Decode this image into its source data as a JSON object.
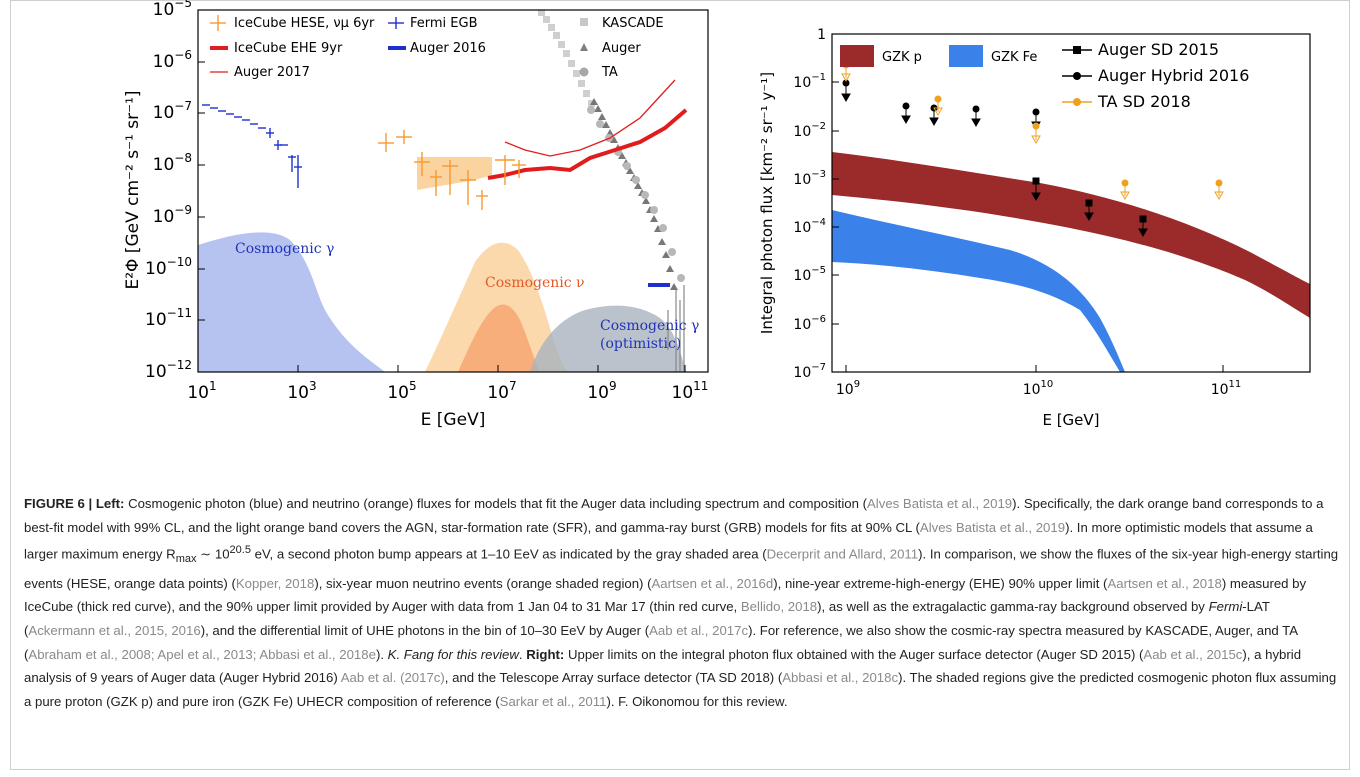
{
  "chart_data": [
    {
      "type": "scatter",
      "panel": "left",
      "xlabel": "E [GeV]",
      "ylabel": "E²Φ [GeV cm⁻² s⁻¹ sr⁻¹]",
      "xscale": "log",
      "yscale": "log",
      "xlim": [
        10,
        500000000000
      ],
      "ylim": [
        1e-12,
        1e-05
      ],
      "x_ticks": [
        "10^1",
        "10^3",
        "10^5",
        "10^7",
        "10^9",
        "10^11"
      ],
      "y_ticks": [
        "10^-12",
        "10^-11",
        "10^-10",
        "10^-9",
        "10^-8",
        "10^-7",
        "10^-6",
        "10^-5"
      ],
      "legend": [
        {
          "label": "IceCube HESE, νμ 6yr",
          "color": "#f59a32",
          "marker": "errorbar"
        },
        {
          "label": "IceCube EHE 9yr",
          "color": "#e01c1c",
          "marker": "thick-line"
        },
        {
          "label": "Auger 2017",
          "color": "#e01c1c",
          "marker": "thin-line"
        },
        {
          "label": "Fermi EGB",
          "color": "#1f2fcf",
          "marker": "errorbar"
        },
        {
          "label": "Auger 2016",
          "color": "#1f2fcf",
          "marker": "thick-line"
        },
        {
          "label": "KASCADE",
          "color": "#c8c8c8",
          "marker": "square"
        },
        {
          "label": "Auger",
          "color": "#808080",
          "marker": "triangle"
        },
        {
          "label": "TA",
          "color": "#a8a8a8",
          "marker": "circle"
        }
      ],
      "annotations": [
        "Cosmogenic γ",
        "Cosmogenic ν",
        "Cosmogenic γ",
        "(optimistic)"
      ],
      "series": [
        {
          "name": "Fermi EGB",
          "x": [
            12,
            17,
            24,
            34,
            48,
            68,
            95,
            135,
            190,
            270,
            380,
            540,
            760
          ],
          "y": [
            3.4e-07,
            3e-07,
            2.6e-07,
            2.3e-07,
            2e-07,
            1.8e-07,
            1.6e-07,
            1.3e-07,
            1e-07,
            6e-08,
            6e-08,
            2.8e-08,
            1.5e-08
          ]
        },
        {
          "name": "IceCube HESE, νμ 6yr",
          "x": [
            60000,
            150000,
            400000,
            1000000,
            2500000,
            6000000,
            15000000,
            35000000,
            80000000
          ],
          "y": [
            6.5e-08,
            8e-08,
            2.2e-08,
            1.5e-08,
            1.2e-08,
            5e-09,
            1.7e-08,
            2e-08,
            1.8e-08
          ]
        },
        {
          "name": "IceCube EHE 9yr",
          "x": [
            5000000,
            30000000,
            100000000,
            1000000000,
            10000000000,
            50000000000,
            200000000000
          ],
          "y": [
            1.2e-08,
            1.8e-08,
            2.1e-08,
            2e-08,
            3.6e-08,
            6.5e-08,
            2.6e-07
          ]
        },
        {
          "name": "Auger 2017",
          "x": [
            10000000,
            100000000,
            500000000,
            1000000000,
            5000000000,
            50000000000,
            300000000000
          ],
          "y": [
            1e-07,
            3.8e-08,
            3e-08,
            3.5e-08,
            4e-08,
            1.5e-07,
            8e-07
          ]
        },
        {
          "name": "Auger 2016",
          "x": [
            10000000000,
            30000000000
          ],
          "y": [
            7e-11,
            7e-11
          ]
        }
      ]
    },
    {
      "type": "scatter",
      "panel": "right",
      "xlabel": "E [GeV]",
      "ylabel": "Integral photon flux [km⁻² sr⁻¹ y⁻¹]",
      "xscale": "log",
      "yscale": "log",
      "xlim": [
        800000000,
        200000000000
      ],
      "ylim": [
        1e-07,
        1
      ],
      "x_ticks": [
        "10^9",
        "10^10",
        "10^11"
      ],
      "y_ticks": [
        "10^-7",
        "10^-6",
        "10^-5",
        "10^-4",
        "10^-3",
        "10^-2",
        "10^-1",
        "1"
      ],
      "legend": [
        {
          "label": "GZK p",
          "color": "#9b2a2a",
          "marker": "band"
        },
        {
          "label": "GZK Fe",
          "color": "#3a82ea",
          "marker": "band"
        },
        {
          "label": "Auger SD 2015",
          "color": "#000000",
          "marker": "square"
        },
        {
          "label": "Auger Hybrid 2016",
          "color": "#000000",
          "marker": "circle"
        },
        {
          "label": "TA SD 2018",
          "color": "#f0a020",
          "marker": "circle"
        }
      ],
      "series": [
        {
          "name": "Auger SD 2015",
          "x": [
            10000000000,
            20000000000,
            40000000000
          ],
          "y": [
            0.002,
            0.001,
            0.0005
          ]
        },
        {
          "name": "Auger Hybrid 2016",
          "x": [
            1000000000,
            2000000000,
            3000000000,
            5000000000,
            10000000000
          ],
          "y": [
            0.027,
            0.009,
            0.008,
            0.008,
            0.007
          ]
        },
        {
          "name": "TA SD 2018",
          "x": [
            1000000000,
            3200000000,
            10000000000,
            32000000000,
            100000000000
          ],
          "y": [
            0.07,
            0.012,
            0.004,
            0.001,
            0.001
          ]
        },
        {
          "name": "GZK p",
          "x": [
            800000000,
            1000000000,
            10000000000,
            50000000000,
            100000000000,
            200000000000
          ],
          "y_low": [
            0.0012,
            0.001,
            0.00028,
            5e-05,
            1e-05,
            7e-07
          ],
          "y_high": [
            0.004,
            0.0035,
            0.0013,
            0.00045,
            0.00012,
            6e-06
          ]
        },
        {
          "name": "GZK Fe",
          "x": [
            800000000,
            1000000000,
            10000000000,
            20000000000,
            30000000000,
            45000000000
          ],
          "y_low": [
            2.8e-05,
            2.5e-05,
            4e-06,
            1.5e-06,
            4e-07,
            1e-07
          ],
          "y_high": [
            0.00025,
            0.00022,
            6e-05,
            1.5e-05,
            2e-06,
            1e-07
          ]
        }
      ]
    }
  ],
  "caption": {
    "s01": "FIGURE 6 | Left:",
    "s02": " Cosmogenic photon (blue) and neutrino (orange) fluxes for models that fit the Auger data including spectrum and composition (",
    "s03": "Alves Batista et al., 2019",
    "s04": "). Specifically, the dark orange band corresponds to a best-fit model with 99% CL, and the light orange band covers the AGN, star-formation rate (SFR), and gamma-ray burst (GRB) models for fits at 90% CL (",
    "s05": "Alves Batista et al., 2019",
    "s06": "). In more optimistic models that assume a larger maximum energy R",
    "s07": "max",
    "s08": " ∼ 10",
    "s09": "20.5",
    "s10": " eV, a second photon bump appears at 1–10 EeV as indicated by the gray shaded area (",
    "s11": "Decerprit and Allard, 2011",
    "s12": "). In comparison, we show the fluxes of the six-year high-energy starting events (HESE, orange data points) (",
    "s13": "Kopper, 2018",
    "s14": "), six-year muon neutrino events (orange shaded region) (",
    "s15": "Aartsen et al., 2016d",
    "s16": "), nine-year extreme-high-energy (EHE) 90% upper limit (",
    "s17": "Aartsen et al., 2018",
    "s18": ") measured by IceCube (thick red curve), and the 90% upper limit provided by Auger with data from 1 Jan 04 to 31 Mar 17 (thin red curve, ",
    "s19": "Bellido, 2018",
    "s20": "), as well as the extragalactic gamma-ray background observed by ",
    "s21": "Fermi",
    "s22": "-LAT (",
    "s23": "Ackermann et al., 2015, 2016",
    "s24": "), and the differential limit of UHE photons in the bin of 10–30 EeV by Auger (",
    "s25": "Aab et al., 2017c",
    "s26": "). For reference, we also show the cosmic-ray spectra measured by KASCADE, Auger, and TA (",
    "s27": "Abraham et al., 2008; Apel et al., 2013; Abbasi et al., 2018e",
    "s28": "). ",
    "s29": "K. Fang for this review",
    "s30": ". ",
    "s31": "Right:",
    "s32": " Upper limits on the integral photon flux obtained with the Auger surface detector (Auger SD 2015) (",
    "s33": "Aab et al., 2015c",
    "s34": "), a hybrid analysis of 9 years of Auger data (Auger Hybrid 2016) ",
    "s35": "Aab et al. (2017c)",
    "s36": ", and the Telescope Array surface detector (TA SD 2018) (",
    "s37": "Abbasi et al., 2018c",
    "s38": "). The shaded regions give the predicted cosmogenic photon flux assuming a pure proton (GZK p) and pure iron (GZK Fe) UHECR composition of reference (",
    "s39": "Sarkar et al., 2011",
    "s40": "). F. Oikonomou for this review."
  }
}
